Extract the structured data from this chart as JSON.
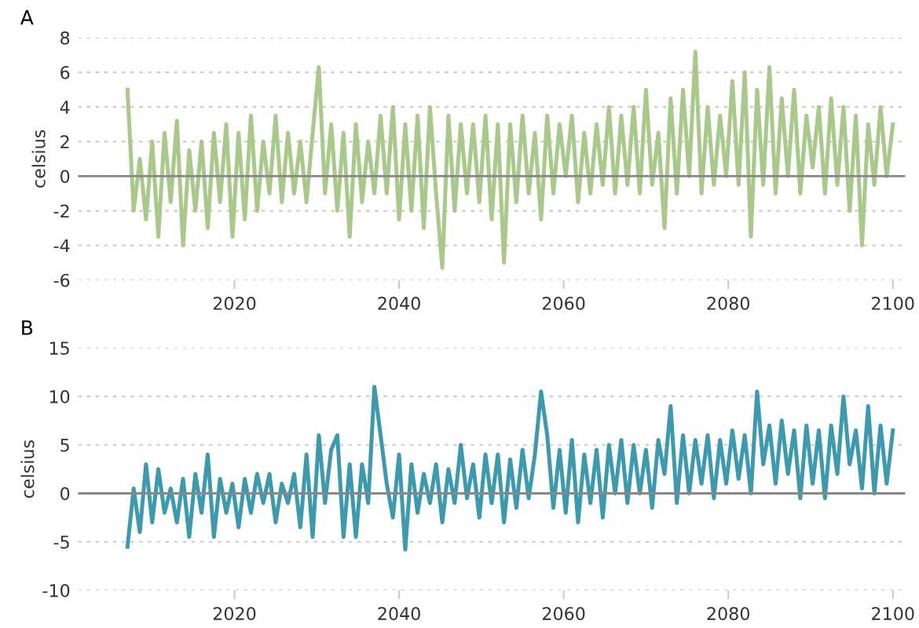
{
  "chart_data": [
    {
      "type": "line",
      "title": "A",
      "ylabel": "celsius",
      "xlim": [
        2001,
        2101.5
      ],
      "xticks": [
        2020,
        2040,
        2060,
        2080,
        2100
      ],
      "ylim": [
        -6,
        8
      ],
      "yticks": [
        -6,
        -4,
        -2,
        0,
        2,
        4,
        6,
        8
      ],
      "grid": "y",
      "ref_lines": [
        {
          "axis": "y",
          "value": 0,
          "label": null,
          "color": "#888888"
        }
      ],
      "x": [
        2007,
        2007.75,
        2008.5,
        2009.25,
        2010,
        2010.75,
        2011.5,
        2012.25,
        2013,
        2013.75,
        2014.5,
        2015.25,
        2016,
        2016.75,
        2017.5,
        2018.25,
        2019,
        2019.75,
        2020.5,
        2021.25,
        2022,
        2022.75,
        2023.5,
        2024.25,
        2025,
        2025.75,
        2026.5,
        2027.25,
        2028,
        2028.75,
        2029.5,
        2030.25,
        2031,
        2031.75,
        2032.5,
        2033.25,
        2034,
        2034.75,
        2035.5,
        2036.25,
        2037,
        2037.75,
        2038.5,
        2039.25,
        2040,
        2040.75,
        2041.5,
        2042.25,
        2043,
        2043.75,
        2044.5,
        2045.25,
        2046,
        2046.75,
        2047.5,
        2048.25,
        2049,
        2049.75,
        2050.5,
        2051.25,
        2052,
        2052.75,
        2053.5,
        2054.25,
        2055,
        2055.75,
        2056.5,
        2057.25,
        2058,
        2058.75,
        2059.5,
        2060.25,
        2061,
        2061.75,
        2062.5,
        2063.25,
        2064,
        2064.75,
        2065.5,
        2066.25,
        2067,
        2067.75,
        2068.5,
        2069.25,
        2070,
        2070.75,
        2071.5,
        2072.25,
        2073,
        2073.75,
        2074.5,
        2075.25,
        2076,
        2076.75,
        2077.5,
        2078.25,
        2079,
        2079.75,
        2080.5,
        2081.25,
        2082,
        2082.75,
        2083.5,
        2084.25,
        2085,
        2085.75,
        2086.5,
        2087.25,
        2088,
        2088.75,
        2089.5,
        2090.25,
        2091,
        2091.75,
        2092.5,
        2093.25,
        2094,
        2094.75,
        2095.5,
        2096.25,
        2097,
        2097.75,
        2098.5,
        2099.25,
        2100
      ],
      "series": [
        {
          "color": "#a9c98a",
          "values": [
            5,
            -2,
            1,
            -2.5,
            2,
            -3.5,
            2.5,
            -1.5,
            3.2,
            -4,
            1.5,
            -2,
            2,
            -3,
            2.5,
            -1.5,
            3,
            -3.5,
            2.5,
            -2.5,
            3.5,
            -2,
            2,
            -1,
            3.5,
            -1.5,
            2.5,
            -1,
            2,
            -1.5,
            2.5,
            6.3,
            -1,
            3,
            -2,
            2.5,
            -3.5,
            3,
            -1.5,
            2,
            -1,
            3.5,
            -1,
            4,
            -2.5,
            3,
            -2,
            3.5,
            -3,
            4,
            -1,
            -5.3,
            3.5,
            -2,
            3,
            -1,
            3,
            -1.5,
            3.5,
            -2.5,
            3,
            -5,
            3,
            -1.5,
            3.5,
            -1,
            2.5,
            -2.5,
            3.5,
            -1,
            3,
            0,
            3.5,
            -1.5,
            2.5,
            -1,
            3,
            -0.5,
            4,
            -1,
            3.5,
            -0.5,
            4,
            -1,
            5,
            -0.5,
            2.5,
            -3,
            4.5,
            -1,
            5,
            0,
            7.2,
            -1,
            4,
            -0.5,
            3.5,
            0,
            5.5,
            -0.5,
            6,
            -3.5,
            5,
            -0.5,
            6.3,
            -1,
            4.5,
            0,
            5,
            -1,
            3.5,
            0.5,
            4,
            -1,
            4.5,
            -0.5,
            4,
            -2,
            3.5,
            -4,
            3,
            -0.5,
            4,
            0,
            3
          ]
        }
      ]
    },
    {
      "type": "line",
      "title": "B",
      "ylabel": "celsius",
      "xlim": [
        2001,
        2101.5
      ],
      "xticks": [
        2020,
        2040,
        2060,
        2080,
        2100
      ],
      "ylim": [
        -10,
        15
      ],
      "yticks": [
        -10,
        -5,
        0,
        5,
        10,
        15
      ],
      "grid": "y",
      "ref_lines": [
        {
          "axis": "y",
          "value": 0,
          "label": null,
          "color": "#888888"
        }
      ],
      "x": [
        2007,
        2007.75,
        2008.5,
        2009.25,
        2010,
        2010.75,
        2011.5,
        2012.25,
        2013,
        2013.75,
        2014.5,
        2015.25,
        2016,
        2016.75,
        2017.5,
        2018.25,
        2019,
        2019.75,
        2020.5,
        2021.25,
        2022,
        2022.75,
        2023.5,
        2024.25,
        2025,
        2025.75,
        2026.5,
        2027.25,
        2028,
        2028.75,
        2029.5,
        2030.25,
        2031,
        2031.75,
        2032.5,
        2033.25,
        2034,
        2034.75,
        2035.5,
        2036.25,
        2037,
        2037.75,
        2038.5,
        2039.25,
        2040,
        2040.75,
        2041.5,
        2042.25,
        2043,
        2043.75,
        2044.5,
        2045.25,
        2046,
        2046.75,
        2047.5,
        2048.25,
        2049,
        2049.75,
        2050.5,
        2051.25,
        2052,
        2052.75,
        2053.5,
        2054.25,
        2055,
        2055.75,
        2056.5,
        2057.25,
        2058,
        2058.75,
        2059.5,
        2060.25,
        2061,
        2061.75,
        2062.5,
        2063.25,
        2064,
        2064.75,
        2065.5,
        2066.25,
        2067,
        2067.75,
        2068.5,
        2069.25,
        2070,
        2070.75,
        2071.5,
        2072.25,
        2073,
        2073.75,
        2074.5,
        2075.25,
        2076,
        2076.75,
        2077.5,
        2078.25,
        2079,
        2079.75,
        2080.5,
        2081.25,
        2082,
        2082.75,
        2083.5,
        2084.25,
        2085,
        2085.75,
        2086.5,
        2087.25,
        2088,
        2088.75,
        2089.5,
        2090.25,
        2091,
        2091.75,
        2092.5,
        2093.25,
        2094,
        2094.75,
        2095.5,
        2096.25,
        2097,
        2097.75,
        2098.5,
        2099.25,
        2100
      ],
      "series": [
        {
          "color": "#3b9aae",
          "values": [
            -5.5,
            0.5,
            -4,
            3,
            -3,
            2.5,
            -2,
            0.5,
            -3,
            1.5,
            -4.5,
            2,
            -2,
            4,
            -4.5,
            1.5,
            -2,
            1,
            -3.5,
            1.5,
            -2,
            2,
            -1,
            2,
            -3,
            1,
            -1,
            2,
            -3.5,
            4,
            -4.5,
            6,
            -1,
            4.5,
            6,
            -4.5,
            3,
            -4.5,
            3,
            -1,
            11,
            6,
            1,
            -2.5,
            4,
            -5.8,
            3,
            -2,
            2,
            -1,
            3,
            -3,
            2.5,
            -1,
            5,
            -0.5,
            3,
            -2.5,
            4,
            -1,
            4,
            -3,
            3.5,
            -1.5,
            4.5,
            -0.5,
            4,
            10.5,
            6,
            -1.5,
            4.5,
            -2,
            5.5,
            -3,
            4,
            -1,
            4.5,
            -2.5,
            5,
            0,
            5.5,
            -1,
            5,
            0,
            4.5,
            -1.5,
            5.5,
            2,
            9,
            -1,
            6,
            0,
            5.5,
            1,
            6,
            -0.5,
            5.5,
            1,
            6.5,
            1.5,
            6,
            0,
            10.5,
            3,
            7,
            1,
            7.5,
            2,
            6.5,
            -0.5,
            7,
            1,
            6.5,
            -0.5,
            7,
            2,
            10,
            3,
            6.5,
            0.5,
            9,
            0,
            7,
            1,
            6.5
          ]
        }
      ]
    }
  ]
}
